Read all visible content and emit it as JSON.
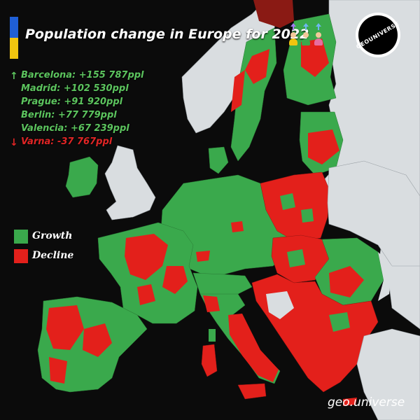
{
  "title": "Population change in Europe for 2022",
  "logo_text": "GEOUNIVERSE",
  "footer": "geo.universe",
  "cities": [
    {
      "direction": "up",
      "text": "Barcelona: +155 787ppl"
    },
    {
      "direction": "none",
      "text": "Madrid: +102 530ppl"
    },
    {
      "direction": "none",
      "text": "Prague: +91 920ppl"
    },
    {
      "direction": "none",
      "text": "Berlin: +77 779ppl"
    },
    {
      "direction": "none",
      "text": "Valencia: +67 239ppl"
    },
    {
      "direction": "down",
      "text": "Varna: -37 767ppl"
    }
  ],
  "legend": [
    {
      "label": "Growth",
      "color": "#3aa94c"
    },
    {
      "label": "Decline",
      "color": "#e3201b"
    }
  ],
  "colors": {
    "growth": "#3aa94c",
    "decline": "#e3201b",
    "no_data": "#d9dde0",
    "sea": "#0b0b0b",
    "growth_text": "#5cc45e",
    "decline_text": "#e02525",
    "flag_blue": "#1f5fd6",
    "flag_yellow": "#f1c40f"
  },
  "icons": [
    "ukraine-flag-icon",
    "people-arrows-icon",
    "geouniverse-logo-icon"
  ]
}
